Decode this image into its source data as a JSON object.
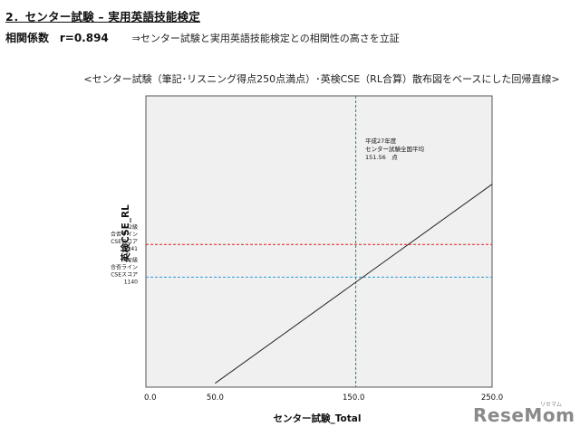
{
  "heading": "2．センター試験 – 実用英語技能検定",
  "correlation": {
    "label": "相関係数",
    "value": "r=0.894",
    "note": "⇒センター試験と実用英語技能検定との相関性の高さを立証"
  },
  "chart_data": {
    "type": "line",
    "title": "<センター試験（筆記･リスニング得点250点満点）･英検CSE（RL合算）散布図をベースにした回帰直線>",
    "xlabel": "センター試験_Total",
    "ylabel": "英検CSE_RL",
    "xlim": [
      0,
      250
    ],
    "ylim": [
      800,
      1700
    ],
    "x_ticks": [
      "0.0",
      "50.0",
      "150.0",
      "250.0"
    ],
    "x_tick_values": [
      0,
      50,
      150,
      250
    ],
    "grid": false,
    "series": [
      {
        "x": [
          50,
          250
        ],
        "y": [
          812,
          1427
        ],
        "color": "#222222"
      }
    ],
    "reference_lines": [
      {
        "orientation": "vertical",
        "value": 151.56,
        "color": "#1a9a3a",
        "label": [
          "平成27年度",
          "センター試験全国平均",
          "151.56　点"
        ]
      },
      {
        "orientation": "horizontal",
        "value": 1241,
        "color": "#e02020",
        "label": [
          "2級",
          "合否ライン",
          "CSEスコア",
          "1241"
        ]
      },
      {
        "orientation": "horizontal",
        "value": 1140,
        "color": "#2a9ad8",
        "label": [
          "準2級",
          "合否ライン",
          "CSEスコア",
          "1140"
        ]
      }
    ]
  },
  "watermark": {
    "text": "ReseMom",
    "sub": "リセマム"
  }
}
